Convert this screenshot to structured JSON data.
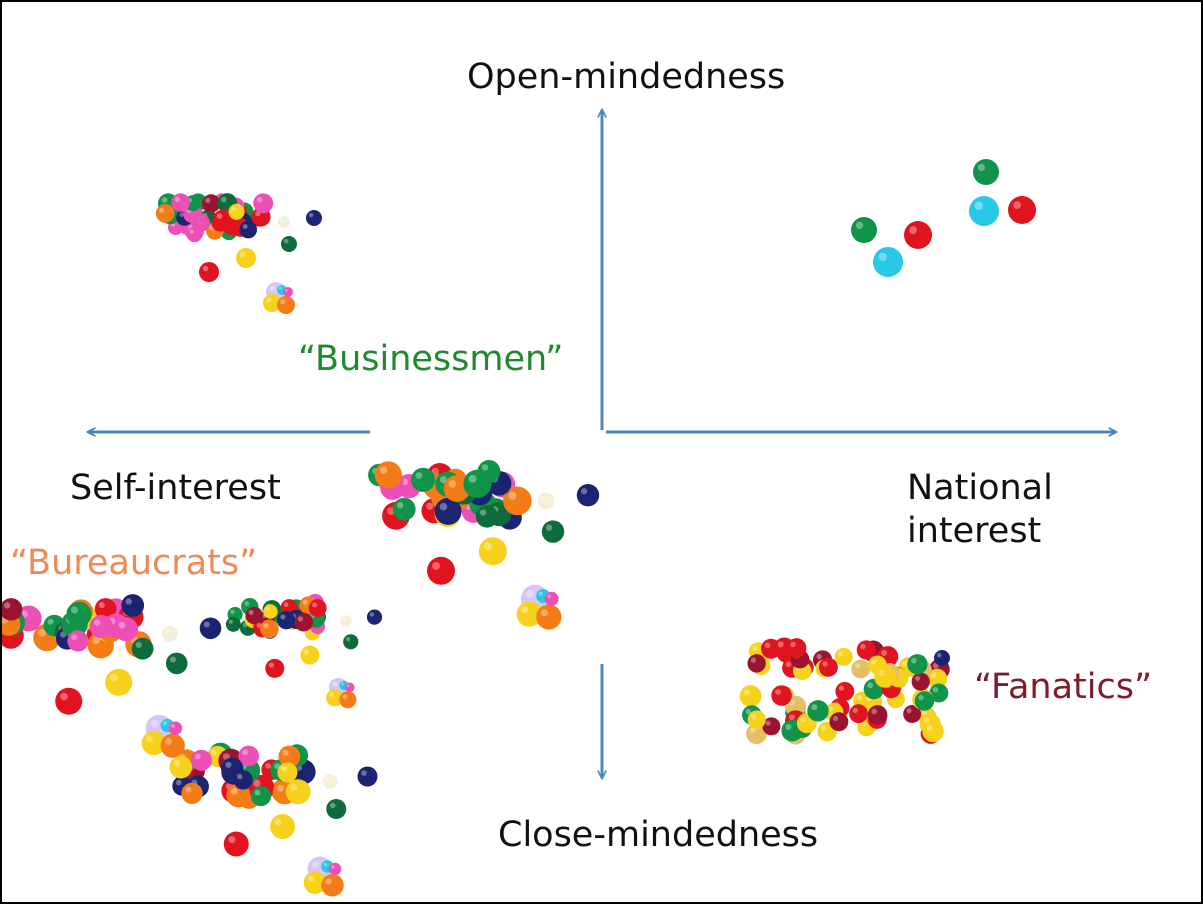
{
  "axes": {
    "top_label": "Open-mindedness",
    "bottom_label": "Close-mindedness",
    "left_label": "Self-interest",
    "right_label": "National\ninterest",
    "arrow_color": "#4d87b8"
  },
  "groups": [
    {
      "label": "“Businessmen”",
      "color": "#1e8a2c"
    },
    {
      "label": "“Bureaucrats”",
      "color": "#f08a55"
    },
    {
      "label": "“Fanatics”",
      "color": "#7a1f2a"
    }
  ],
  "ball_palette": {
    "red": "#e0141e",
    "green": "#11944a",
    "darkgreen": "#0e6b3a",
    "yellow": "#f7d21c",
    "orange": "#f47c16",
    "pink": "#ee4fb6",
    "navy": "#1b2470",
    "cyan": "#27c9e6",
    "maroon": "#9a1330",
    "lavender": "#d8c5f5",
    "cream": "#f6efd8",
    "tan": "#e4c065"
  }
}
